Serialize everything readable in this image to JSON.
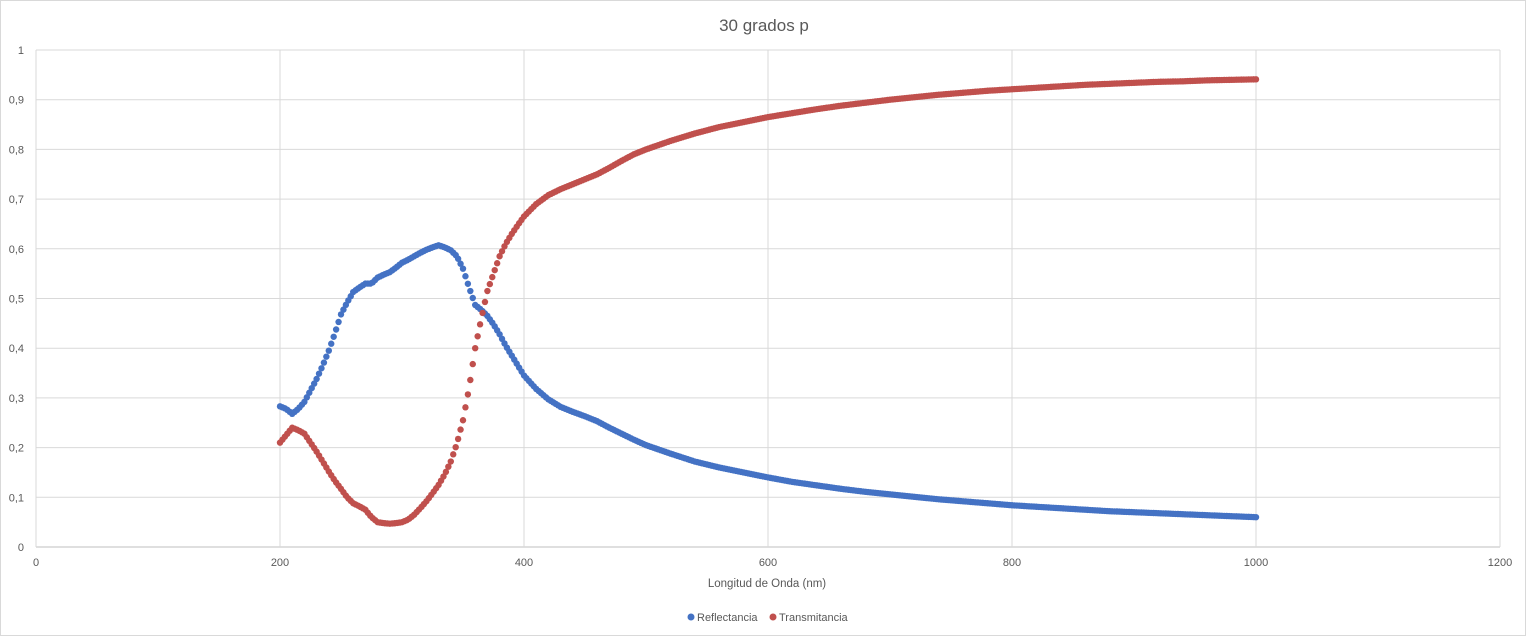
{
  "chart_data": {
    "type": "scatter",
    "title": "30 grados p",
    "xlabel": "Longitud de Onda (nm)",
    "ylabel": "",
    "xlim": [
      0,
      1200
    ],
    "ylim": [
      0,
      1
    ],
    "x_ticks": [
      0,
      200,
      400,
      600,
      800,
      1000,
      1200
    ],
    "y_ticks": [
      0,
      0.1,
      0.2,
      0.3,
      0.4,
      0.5,
      0.6,
      0.7,
      0.8,
      0.9,
      1
    ],
    "x_tick_labels": [
      "0",
      "200",
      "400",
      "600",
      "800",
      "1000",
      "1200"
    ],
    "y_tick_labels": [
      "0",
      "0,1",
      "0,2",
      "0,3",
      "0,4",
      "0,5",
      "0,6",
      "0,7",
      "0,8",
      "0,9",
      "1"
    ],
    "grid": true,
    "legend_position": "bottom",
    "x_step": 2,
    "series": [
      {
        "name": "Reflectancia",
        "color": "#4472c4",
        "points": [
          [
            200,
            0.283
          ],
          [
            205,
            0.278
          ],
          [
            210,
            0.268
          ],
          [
            215,
            0.278
          ],
          [
            220,
            0.292
          ],
          [
            225,
            0.315
          ],
          [
            230,
            0.338
          ],
          [
            235,
            0.365
          ],
          [
            240,
            0.395
          ],
          [
            245,
            0.43
          ],
          [
            250,
            0.468
          ],
          [
            255,
            0.492
          ],
          [
            260,
            0.513
          ],
          [
            265,
            0.522
          ],
          [
            270,
            0.53
          ],
          [
            275,
            0.53
          ],
          [
            280,
            0.542
          ],
          [
            285,
            0.548
          ],
          [
            290,
            0.553
          ],
          [
            295,
            0.562
          ],
          [
            300,
            0.572
          ],
          [
            305,
            0.578
          ],
          [
            310,
            0.585
          ],
          [
            315,
            0.592
          ],
          [
            320,
            0.598
          ],
          [
            325,
            0.603
          ],
          [
            330,
            0.607
          ],
          [
            335,
            0.603
          ],
          [
            340,
            0.597
          ],
          [
            345,
            0.585
          ],
          [
            350,
            0.56
          ],
          [
            355,
            0.522
          ],
          [
            360,
            0.487
          ],
          [
            365,
            0.477
          ],
          [
            370,
            0.465
          ],
          [
            375,
            0.448
          ],
          [
            380,
            0.428
          ],
          [
            385,
            0.405
          ],
          [
            390,
            0.385
          ],
          [
            395,
            0.365
          ],
          [
            400,
            0.345
          ],
          [
            410,
            0.318
          ],
          [
            420,
            0.297
          ],
          [
            430,
            0.282
          ],
          [
            440,
            0.272
          ],
          [
            450,
            0.263
          ],
          [
            460,
            0.253
          ],
          [
            470,
            0.24
          ],
          [
            480,
            0.228
          ],
          [
            490,
            0.216
          ],
          [
            500,
            0.205
          ],
          [
            520,
            0.188
          ],
          [
            540,
            0.172
          ],
          [
            560,
            0.16
          ],
          [
            580,
            0.15
          ],
          [
            600,
            0.14
          ],
          [
            620,
            0.131
          ],
          [
            640,
            0.124
          ],
          [
            660,
            0.117
          ],
          [
            680,
            0.111
          ],
          [
            700,
            0.106
          ],
          [
            720,
            0.101
          ],
          [
            740,
            0.096
          ],
          [
            760,
            0.092
          ],
          [
            780,
            0.088
          ],
          [
            800,
            0.084
          ],
          [
            820,
            0.081
          ],
          [
            840,
            0.078
          ],
          [
            860,
            0.075
          ],
          [
            880,
            0.072
          ],
          [
            900,
            0.07
          ],
          [
            920,
            0.068
          ],
          [
            940,
            0.066
          ],
          [
            960,
            0.064
          ],
          [
            980,
            0.062
          ],
          [
            1000,
            0.06
          ]
        ]
      },
      {
        "name": "Transmitancia",
        "color": "#c0504d",
        "points": [
          [
            200,
            0.21
          ],
          [
            205,
            0.225
          ],
          [
            210,
            0.24
          ],
          [
            215,
            0.235
          ],
          [
            220,
            0.228
          ],
          [
            225,
            0.21
          ],
          [
            230,
            0.192
          ],
          [
            235,
            0.172
          ],
          [
            240,
            0.152
          ],
          [
            245,
            0.133
          ],
          [
            250,
            0.117
          ],
          [
            255,
            0.1
          ],
          [
            260,
            0.088
          ],
          [
            265,
            0.082
          ],
          [
            270,
            0.075
          ],
          [
            275,
            0.06
          ],
          [
            280,
            0.05
          ],
          [
            285,
            0.048
          ],
          [
            290,
            0.047
          ],
          [
            295,
            0.048
          ],
          [
            300,
            0.05
          ],
          [
            305,
            0.055
          ],
          [
            310,
            0.065
          ],
          [
            315,
            0.078
          ],
          [
            320,
            0.092
          ],
          [
            325,
            0.108
          ],
          [
            330,
            0.125
          ],
          [
            335,
            0.146
          ],
          [
            340,
            0.172
          ],
          [
            345,
            0.208
          ],
          [
            350,
            0.255
          ],
          [
            355,
            0.32
          ],
          [
            360,
            0.4
          ],
          [
            365,
            0.46
          ],
          [
            370,
            0.515
          ],
          [
            375,
            0.55
          ],
          [
            380,
            0.585
          ],
          [
            385,
            0.61
          ],
          [
            390,
            0.63
          ],
          [
            395,
            0.648
          ],
          [
            400,
            0.665
          ],
          [
            410,
            0.69
          ],
          [
            420,
            0.708
          ],
          [
            430,
            0.72
          ],
          [
            440,
            0.73
          ],
          [
            450,
            0.74
          ],
          [
            460,
            0.75
          ],
          [
            470,
            0.763
          ],
          [
            480,
            0.777
          ],
          [
            490,
            0.79
          ],
          [
            500,
            0.8
          ],
          [
            520,
            0.817
          ],
          [
            540,
            0.832
          ],
          [
            560,
            0.845
          ],
          [
            580,
            0.855
          ],
          [
            600,
            0.865
          ],
          [
            620,
            0.873
          ],
          [
            640,
            0.881
          ],
          [
            660,
            0.888
          ],
          [
            680,
            0.894
          ],
          [
            700,
            0.9
          ],
          [
            720,
            0.905
          ],
          [
            740,
            0.91
          ],
          [
            760,
            0.914
          ],
          [
            780,
            0.918
          ],
          [
            800,
            0.921
          ],
          [
            820,
            0.924
          ],
          [
            840,
            0.927
          ],
          [
            860,
            0.93
          ],
          [
            880,
            0.932
          ],
          [
            900,
            0.934
          ],
          [
            920,
            0.936
          ],
          [
            940,
            0.937
          ],
          [
            960,
            0.939
          ],
          [
            980,
            0.94
          ],
          [
            1000,
            0.941
          ]
        ]
      }
    ]
  }
}
